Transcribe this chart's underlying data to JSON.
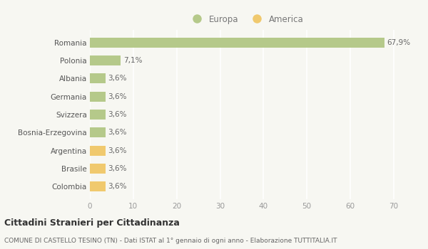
{
  "categories": [
    "Colombia",
    "Brasile",
    "Argentina",
    "Bosnia-Erzegovina",
    "Svizzera",
    "Germania",
    "Albania",
    "Polonia",
    "Romania"
  ],
  "values": [
    3.6,
    3.6,
    3.6,
    3.6,
    3.6,
    3.6,
    3.6,
    7.1,
    67.9
  ],
  "colors": [
    "#f0c96e",
    "#f0c96e",
    "#f0c96e",
    "#b5c98a",
    "#b5c98a",
    "#b5c98a",
    "#b5c98a",
    "#b5c98a",
    "#b5c98a"
  ],
  "labels": [
    "3,6%",
    "3,6%",
    "3,6%",
    "3,6%",
    "3,6%",
    "3,6%",
    "3,6%",
    "7,1%",
    "67,9%"
  ],
  "europa_color": "#b5c98a",
  "america_color": "#f0c96e",
  "background_color": "#f7f7f2",
  "grid_color": "#ffffff",
  "title": "Cittadini Stranieri per Cittadinanza",
  "subtitle": "COMUNE DI CASTELLO TESINO (TN) - Dati ISTAT al 1° gennaio di ogni anno - Elaborazione TUTTITALIA.IT",
  "xlim": [
    0,
    72
  ],
  "xticks": [
    0,
    10,
    20,
    30,
    40,
    50,
    60,
    70
  ],
  "bar_height": 0.55
}
